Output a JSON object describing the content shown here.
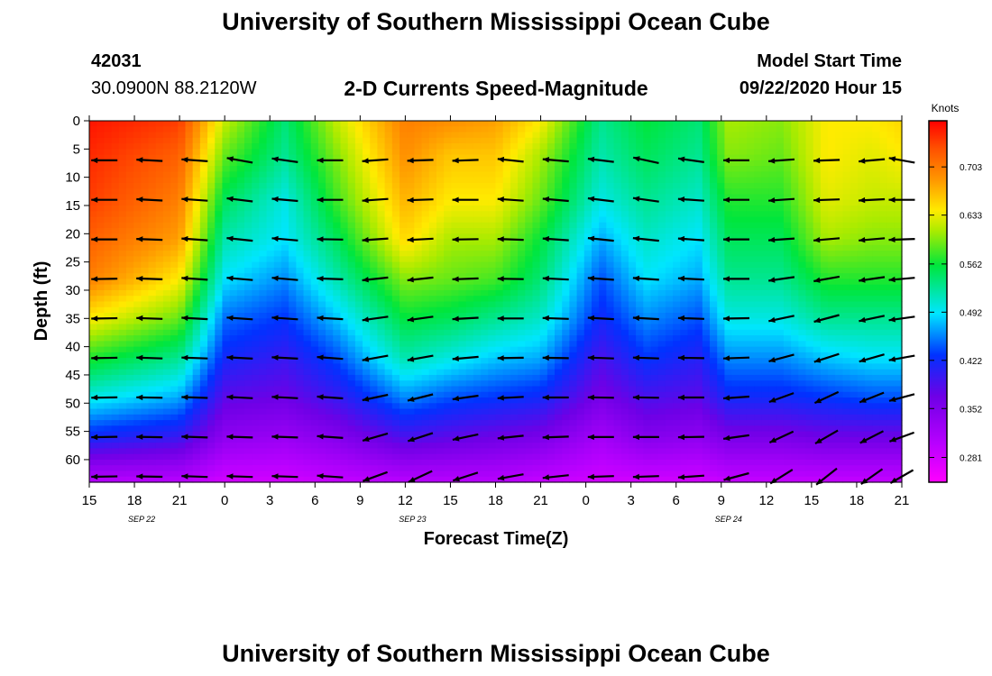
{
  "header": {
    "title": "University of Southern Mississippi Ocean Cube",
    "station_id": "42031",
    "location": "30.0900N 88.2120W",
    "subtitle": "2-D Currents Speed-Magnitude",
    "model_start_label": "Model Start Time",
    "model_start_value": "09/22/2020 Hour 15"
  },
  "footer": {
    "title": "University of Southern Mississippi Ocean Cube"
  },
  "chart_data": {
    "type": "heatmap",
    "title": "2-D Currents Speed-Magnitude",
    "xlabel": "Forecast Time(Z)",
    "ylabel": "Depth (ft)",
    "x_tick_labels": [
      "15",
      "18",
      "21",
      "0",
      "3",
      "6",
      "9",
      "12",
      "15",
      "18",
      "21",
      "0",
      "3",
      "6",
      "9",
      "12",
      "15",
      "18",
      "21"
    ],
    "x_date_labels": [
      {
        "label": "SEP 22",
        "tick_index": 1
      },
      {
        "label": "SEP 23",
        "tick_index": 7
      },
      {
        "label": "SEP 24",
        "tick_index": 14
      }
    ],
    "x_range_hours": [
      0,
      54
    ],
    "ylim": [
      0,
      64
    ],
    "y_ticks": [
      0,
      5,
      10,
      15,
      20,
      25,
      30,
      35,
      40,
      45,
      50,
      55,
      60
    ],
    "colorbar": {
      "unit": "Knots",
      "ticks": [
        0.281,
        0.352,
        0.422,
        0.492,
        0.562,
        0.633,
        0.703
      ],
      "range": [
        0.245,
        0.77
      ]
    },
    "field": {
      "profile_times_hours": [
        0,
        6,
        9,
        13,
        16.5,
        21,
        24,
        27,
        30,
        34,
        37,
        40.5,
        42.5,
        46,
        49,
        52,
        54
      ],
      "depths_ft": [
        0,
        6,
        14,
        21,
        28,
        35,
        42,
        49,
        56,
        64
      ],
      "speed_knots": [
        [
          0.76,
          0.75,
          0.74,
          0.72,
          0.7,
          0.64,
          0.57,
          0.5,
          0.42,
          0.3
        ],
        [
          0.74,
          0.72,
          0.7,
          0.68,
          0.64,
          0.59,
          0.53,
          0.47,
          0.4,
          0.3
        ],
        [
          0.62,
          0.59,
          0.55,
          0.52,
          0.49,
          0.45,
          0.42,
          0.38,
          0.34,
          0.28
        ],
        [
          0.54,
          0.53,
          0.5,
          0.49,
          0.46,
          0.43,
          0.4,
          0.37,
          0.33,
          0.28
        ],
        [
          0.62,
          0.6,
          0.58,
          0.55,
          0.52,
          0.48,
          0.44,
          0.4,
          0.35,
          0.29
        ],
        [
          0.7,
          0.69,
          0.67,
          0.65,
          0.6,
          0.56,
          0.52,
          0.46,
          0.39,
          0.3
        ],
        [
          0.69,
          0.66,
          0.64,
          0.61,
          0.59,
          0.55,
          0.5,
          0.44,
          0.38,
          0.3
        ],
        [
          0.68,
          0.66,
          0.64,
          0.61,
          0.58,
          0.53,
          0.48,
          0.43,
          0.37,
          0.3
        ],
        [
          0.64,
          0.61,
          0.59,
          0.56,
          0.54,
          0.51,
          0.47,
          0.42,
          0.36,
          0.29
        ],
        [
          0.53,
          0.52,
          0.5,
          0.47,
          0.44,
          0.42,
          0.39,
          0.36,
          0.32,
          0.28
        ],
        [
          0.56,
          0.55,
          0.53,
          0.51,
          0.49,
          0.46,
          0.43,
          0.39,
          0.35,
          0.28
        ],
        [
          0.54,
          0.53,
          0.51,
          0.49,
          0.47,
          0.44,
          0.41,
          0.38,
          0.34,
          0.28
        ],
        [
          0.61,
          0.6,
          0.57,
          0.55,
          0.53,
          0.5,
          0.46,
          0.42,
          0.36,
          0.29
        ],
        [
          0.6,
          0.59,
          0.57,
          0.55,
          0.53,
          0.5,
          0.46,
          0.42,
          0.36,
          0.29
        ],
        [
          0.64,
          0.64,
          0.63,
          0.61,
          0.57,
          0.53,
          0.48,
          0.43,
          0.37,
          0.29
        ],
        [
          0.64,
          0.63,
          0.62,
          0.6,
          0.57,
          0.53,
          0.49,
          0.44,
          0.37,
          0.29
        ],
        [
          0.65,
          0.64,
          0.62,
          0.6,
          0.57,
          0.53,
          0.49,
          0.44,
          0.37,
          0.29
        ]
      ]
    },
    "vectors": {
      "times_hours": [
        1,
        4,
        7,
        10,
        13,
        16,
        19,
        22,
        25,
        28,
        31,
        34,
        37,
        40,
        43,
        46,
        49,
        52,
        54
      ],
      "depths_ft": [
        7,
        14,
        21,
        28,
        35,
        42,
        49,
        56,
        63
      ],
      "angles_deg": [
        [
          180,
          177,
          176,
          170,
          172,
          180,
          184,
          182,
          182,
          174,
          175,
          173,
          168,
          172,
          180,
          184,
          182,
          185,
          170
        ],
        [
          180,
          177,
          176,
          173,
          175,
          180,
          184,
          182,
          180,
          176,
          175,
          173,
          172,
          176,
          180,
          184,
          182,
          183,
          180
        ],
        [
          180,
          178,
          176,
          174,
          175,
          179,
          184,
          183,
          181,
          178,
          176,
          174,
          174,
          176,
          180,
          184,
          185,
          185,
          182
        ],
        [
          181,
          178,
          176,
          175,
          175,
          178,
          186,
          186,
          182,
          179,
          177,
          176,
          176,
          177,
          180,
          188,
          190,
          188,
          185
        ],
        [
          181,
          178,
          177,
          176,
          176,
          177,
          188,
          188,
          183,
          180,
          178,
          177,
          177,
          178,
          181,
          192,
          195,
          192,
          188
        ],
        [
          181,
          178,
          178,
          177,
          177,
          176,
          190,
          190,
          185,
          181,
          179,
          178,
          178,
          179,
          182,
          195,
          198,
          196,
          190
        ],
        [
          181,
          179,
          178,
          177,
          177,
          176,
          192,
          194,
          188,
          183,
          180,
          179,
          179,
          180,
          184,
          200,
          205,
          202,
          195
        ],
        [
          181,
          179,
          178,
          178,
          178,
          176,
          196,
          198,
          192,
          186,
          182,
          180,
          180,
          181,
          188,
          205,
          210,
          207,
          200
        ],
        [
          181,
          179,
          178,
          178,
          178,
          176,
          200,
          205,
          198,
          190,
          186,
          182,
          182,
          184,
          195,
          212,
          218,
          215,
          210
        ]
      ]
    }
  }
}
